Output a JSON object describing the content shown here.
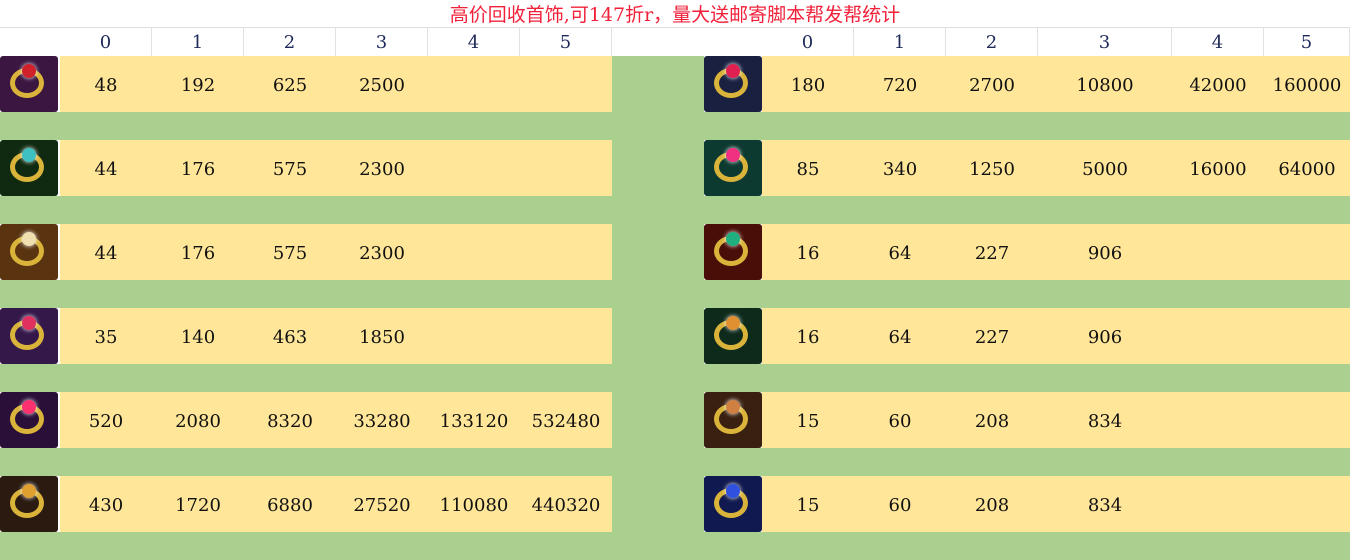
{
  "title": "高价回收首饰,可147折r，量大送邮寄脚本帮发帮统计",
  "colors": {
    "yellow": "#ffe699",
    "green": "#a9d08e",
    "title": "#f2213a"
  },
  "left": {
    "headers": [
      "0",
      "1",
      "2",
      "3",
      "4",
      "5"
    ],
    "rows": [
      {
        "icon": "purple-necklace-icon",
        "bg": "#3a1640",
        "gem": "#d0202a",
        "values": [
          "48",
          "192",
          "625",
          "2500",
          "",
          ""
        ]
      },
      {
        "icon": "green-necklace-icon",
        "bg": "#0f2a10",
        "gem": "#3fc0c0",
        "values": [
          "44",
          "176",
          "575",
          "2300",
          "",
          ""
        ]
      },
      {
        "icon": "winged-clock-amulet-icon",
        "bg": "#5a3410",
        "gem": "#f0e0b0",
        "values": [
          "44",
          "176",
          "575",
          "2300",
          "",
          ""
        ]
      },
      {
        "icon": "gold-chain-necklace-icon",
        "bg": "#35184a",
        "gem": "#e03060",
        "values": [
          "35",
          "140",
          "463",
          "1850",
          "",
          ""
        ]
      },
      {
        "icon": "heart-chain-necklace-icon",
        "bg": "#2a1038",
        "gem": "#ff3070",
        "values": [
          "520",
          "2080",
          "8320",
          "33280",
          "133120",
          "532480"
        ]
      },
      {
        "icon": "pendant-ring-icon",
        "bg": "#2a1a10",
        "gem": "#e0a030",
        "values": [
          "430",
          "1720",
          "6880",
          "27520",
          "110080",
          "440320"
        ]
      }
    ]
  },
  "right": {
    "headers": [
      "0",
      "1",
      "2",
      "3",
      "4",
      "5"
    ],
    "rows": [
      {
        "icon": "ruby-ring-icon",
        "bg": "#1a2040",
        "gem": "#e02050",
        "values": [
          "180",
          "720",
          "2700",
          "10800",
          "42000",
          "160000"
        ]
      },
      {
        "icon": "silver-ring-icon",
        "bg": "#0c3a30",
        "gem": "#f03080",
        "values": [
          "85",
          "340",
          "1250",
          "5000",
          "16000",
          "64000"
        ]
      },
      {
        "icon": "emerald-gold-ring-icon",
        "bg": "#4a0e08",
        "gem": "#20b080",
        "values": [
          "16",
          "64",
          "227",
          "906",
          "",
          ""
        ]
      },
      {
        "icon": "jade-flower-ring-icon",
        "bg": "#0e2a1a",
        "gem": "#e09030",
        "values": [
          "16",
          "64",
          "227",
          "906",
          "",
          ""
        ]
      },
      {
        "icon": "rose-ring-icon",
        "bg": "#3a2010",
        "gem": "#d08040",
        "values": [
          "15",
          "60",
          "208",
          "834",
          "",
          ""
        ]
      },
      {
        "icon": "sapphire-ring-icon",
        "bg": "#101a50",
        "gem": "#3050e0",
        "values": [
          "15",
          "60",
          "208",
          "834",
          "",
          ""
        ]
      }
    ]
  }
}
